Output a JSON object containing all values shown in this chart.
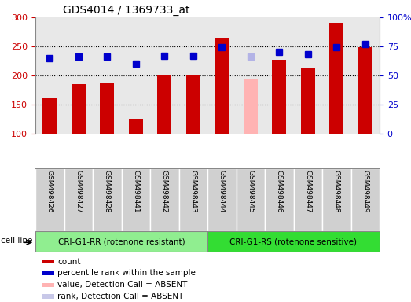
{
  "title": "GDS4014 / 1369733_at",
  "samples": [
    "GSM498426",
    "GSM498427",
    "GSM498428",
    "GSM498441",
    "GSM498442",
    "GSM498443",
    "GSM498444",
    "GSM498445",
    "GSM498446",
    "GSM498447",
    "GSM498448",
    "GSM498449"
  ],
  "bar_values": [
    162,
    185,
    187,
    126,
    201,
    200,
    265,
    195,
    227,
    212,
    290,
    248
  ],
  "bar_colors": [
    "#cc0000",
    "#cc0000",
    "#cc0000",
    "#cc0000",
    "#cc0000",
    "#cc0000",
    "#cc0000",
    "#ffb3b3",
    "#cc0000",
    "#cc0000",
    "#cc0000",
    "#cc0000"
  ],
  "rank_values": [
    65,
    66,
    66,
    60,
    67,
    67,
    74,
    66,
    70,
    68,
    74,
    77
  ],
  "rank_colors": [
    "#0000cc",
    "#0000cc",
    "#0000cc",
    "#0000cc",
    "#0000cc",
    "#0000cc",
    "#0000cc",
    "#b3b3e6",
    "#0000cc",
    "#0000cc",
    "#0000cc",
    "#0000cc"
  ],
  "ylim_left": [
    100,
    300
  ],
  "ylim_right": [
    0,
    100
  ],
  "yticks_left": [
    100,
    150,
    200,
    250,
    300
  ],
  "ytick_labels_left": [
    "100",
    "150",
    "200",
    "250",
    "300"
  ],
  "yticks_right": [
    0,
    25,
    50,
    75,
    100
  ],
  "ytick_labels_right": [
    "0",
    "25",
    "50",
    "75",
    "100%"
  ],
  "group1_label": "CRI-G1-RR (rotenone resistant)",
  "group2_label": "CRI-G1-RS (rotenone sensitive)",
  "group1_count": 6,
  "group2_count": 6,
  "cell_line_label": "cell line",
  "legend_items": [
    {
      "label": "count",
      "color": "#cc0000"
    },
    {
      "label": "percentile rank within the sample",
      "color": "#0000cc"
    },
    {
      "label": "value, Detection Call = ABSENT",
      "color": "#ffb3b3"
    },
    {
      "label": "rank, Detection Call = ABSENT",
      "color": "#c8c8e8"
    }
  ],
  "bar_width": 0.5,
  "rank_marker_size": 6,
  "background_color": "#ffffff",
  "plot_bg_color": "#e8e8e8",
  "label_bg_color": "#d0d0d0",
  "group_bg_color_1": "#90ee90",
  "group_bg_color_2": "#33dd33",
  "border_color": "#888888"
}
